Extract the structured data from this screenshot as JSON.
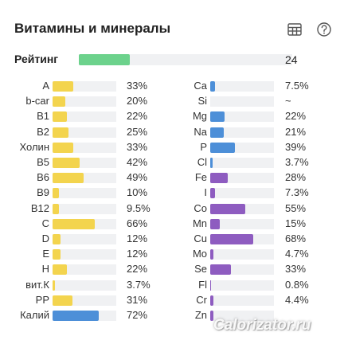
{
  "header": {
    "title": "Витамины и минералы"
  },
  "rating": {
    "label": "Рейтинг",
    "value": "24",
    "fill_fraction": 0.24
  },
  "colors": {
    "vitamin": "#f3d44e",
    "mineral": "#4d8fd8",
    "trace": "#8e5cc0",
    "rating": "#6cd28c",
    "track": "#f0f1f3"
  },
  "left": [
    {
      "label": "A",
      "value": "33%",
      "fraction": 0.33,
      "color": "vitamin"
    },
    {
      "label": "b-car",
      "value": "20%",
      "fraction": 0.2,
      "color": "vitamin"
    },
    {
      "label": "B1",
      "value": "22%",
      "fraction": 0.22,
      "color": "vitamin"
    },
    {
      "label": "B2",
      "value": "25%",
      "fraction": 0.25,
      "color": "vitamin"
    },
    {
      "label": "Холин",
      "value": "33%",
      "fraction": 0.33,
      "color": "vitamin"
    },
    {
      "label": "B5",
      "value": "42%",
      "fraction": 0.42,
      "color": "vitamin"
    },
    {
      "label": "B6",
      "value": "49%",
      "fraction": 0.49,
      "color": "vitamin"
    },
    {
      "label": "B9",
      "value": "10%",
      "fraction": 0.1,
      "color": "vitamin"
    },
    {
      "label": "B12",
      "value": "9.5%",
      "fraction": 0.095,
      "color": "vitamin"
    },
    {
      "label": "C",
      "value": "66%",
      "fraction": 0.66,
      "color": "vitamin"
    },
    {
      "label": "D",
      "value": "12%",
      "fraction": 0.12,
      "color": "vitamin"
    },
    {
      "label": "E",
      "value": "12%",
      "fraction": 0.12,
      "color": "vitamin"
    },
    {
      "label": "H",
      "value": "22%",
      "fraction": 0.22,
      "color": "vitamin"
    },
    {
      "label": "вит.К",
      "value": "3.7%",
      "fraction": 0.037,
      "color": "vitamin"
    },
    {
      "label": "PP",
      "value": "31%",
      "fraction": 0.31,
      "color": "vitamin"
    },
    {
      "label": "Калий",
      "value": "72%",
      "fraction": 0.72,
      "color": "mineral"
    }
  ],
  "right": [
    {
      "label": "Ca",
      "value": "7.5%",
      "fraction": 0.075,
      "color": "mineral"
    },
    {
      "label": "Si",
      "value": "~",
      "fraction": 0,
      "color": "mineral"
    },
    {
      "label": "Mg",
      "value": "22%",
      "fraction": 0.22,
      "color": "mineral"
    },
    {
      "label": "Na",
      "value": "21%",
      "fraction": 0.21,
      "color": "mineral"
    },
    {
      "label": "P",
      "value": "39%",
      "fraction": 0.39,
      "color": "mineral"
    },
    {
      "label": "Cl",
      "value": "3.7%",
      "fraction": 0.037,
      "color": "mineral"
    },
    {
      "label": "Fe",
      "value": "28%",
      "fraction": 0.28,
      "color": "trace"
    },
    {
      "label": "I",
      "value": "7.3%",
      "fraction": 0.073,
      "color": "trace"
    },
    {
      "label": "Co",
      "value": "55%",
      "fraction": 0.55,
      "color": "trace"
    },
    {
      "label": "Mn",
      "value": "15%",
      "fraction": 0.15,
      "color": "trace"
    },
    {
      "label": "Cu",
      "value": "68%",
      "fraction": 0.68,
      "color": "trace"
    },
    {
      "label": "Mo",
      "value": "4.7%",
      "fraction": 0.047,
      "color": "trace"
    },
    {
      "label": "Se",
      "value": "33%",
      "fraction": 0.33,
      "color": "trace"
    },
    {
      "label": "Fl",
      "value": "0.8%",
      "fraction": 0.008,
      "color": "trace"
    },
    {
      "label": "Cr",
      "value": "4.4%",
      "fraction": 0.044,
      "color": "trace"
    },
    {
      "label": "Zn",
      "value": "",
      "fraction": 0.05,
      "color": "trace"
    }
  ],
  "icons": {
    "table": "table-icon",
    "help": "help-icon"
  },
  "watermark": "Calorizator.ru"
}
